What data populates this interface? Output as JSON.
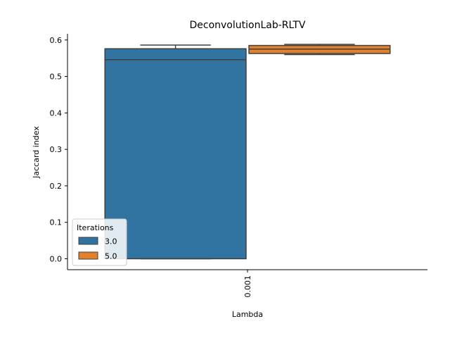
{
  "chart_data": {
    "type": "box",
    "title": "DeconvolutionLab-RLTV",
    "xlabel": "Lambda",
    "ylabel": "Jaccard index",
    "categories": [
      "0.001"
    ],
    "ylim": [
      -0.03,
      0.617
    ],
    "yticks": [
      0.0,
      0.1,
      0.2,
      0.3,
      0.4,
      0.5,
      0.6
    ],
    "ytick_labels": [
      "0.0",
      "0.1",
      "0.2",
      "0.3",
      "0.4",
      "0.5",
      "0.6"
    ],
    "legend": {
      "title": "Iterations",
      "position": "lower-left",
      "entries": [
        "3.0",
        "5.0"
      ]
    },
    "series": [
      {
        "name": "3.0",
        "color": "#3274a1",
        "boxes": [
          {
            "category": "0.001",
            "whisker_low": 0.0,
            "q1": 0.0,
            "median": 0.546,
            "q3": 0.576,
            "whisker_high": 0.586
          }
        ]
      },
      {
        "name": "5.0",
        "color": "#e1812c",
        "boxes": [
          {
            "category": "0.001",
            "whisker_low": 0.56,
            "q1": 0.563,
            "median": 0.575,
            "q3": 0.585,
            "whisker_high": 0.588
          }
        ]
      }
    ],
    "grid": false
  }
}
